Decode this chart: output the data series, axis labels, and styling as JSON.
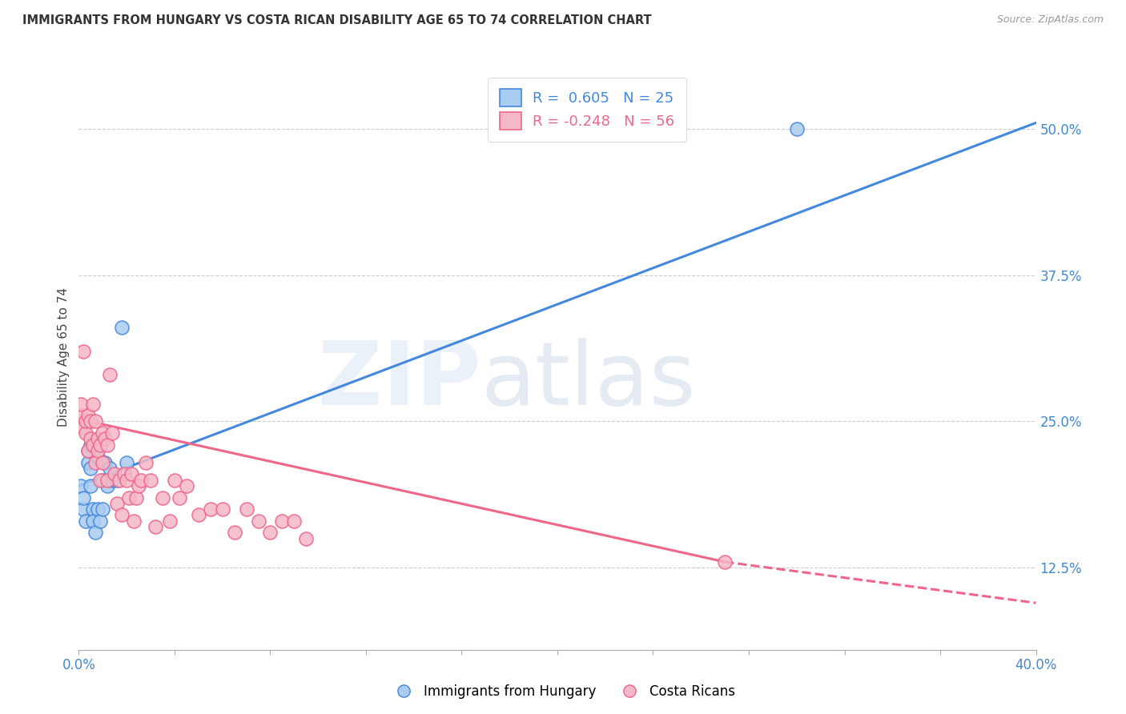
{
  "title": "IMMIGRANTS FROM HUNGARY VS COSTA RICAN DISABILITY AGE 65 TO 74 CORRELATION CHART",
  "source": "Source: ZipAtlas.com",
  "ylabel": "Disability Age 65 to 74",
  "legend_label1": "Immigrants from Hungary",
  "legend_label2": "Costa Ricans",
  "r1": 0.605,
  "n1": 25,
  "r2": -0.248,
  "n2": 56,
  "color_hungary": "#aaccf0",
  "color_cr": "#f5b8c8",
  "color_hungary_line": "#4488dd",
  "color_cr_line": "#ee6688",
  "hungary_x": [
    0.001,
    0.002,
    0.002,
    0.003,
    0.004,
    0.004,
    0.005,
    0.005,
    0.005,
    0.006,
    0.006,
    0.007,
    0.008,
    0.008,
    0.009,
    0.01,
    0.01,
    0.011,
    0.012,
    0.013,
    0.014,
    0.016,
    0.018,
    0.02,
    0.3
  ],
  "hungary_y": [
    0.195,
    0.175,
    0.185,
    0.165,
    0.215,
    0.225,
    0.23,
    0.21,
    0.195,
    0.175,
    0.165,
    0.155,
    0.175,
    0.22,
    0.165,
    0.2,
    0.175,
    0.215,
    0.195,
    0.21,
    0.2,
    0.2,
    0.33,
    0.215,
    0.5
  ],
  "cr_x": [
    0.001,
    0.001,
    0.002,
    0.002,
    0.003,
    0.003,
    0.004,
    0.004,
    0.005,
    0.005,
    0.006,
    0.006,
    0.007,
    0.007,
    0.008,
    0.008,
    0.009,
    0.009,
    0.01,
    0.01,
    0.011,
    0.012,
    0.012,
    0.013,
    0.014,
    0.015,
    0.016,
    0.017,
    0.018,
    0.019,
    0.02,
    0.021,
    0.022,
    0.023,
    0.024,
    0.025,
    0.026,
    0.028,
    0.03,
    0.032,
    0.035,
    0.038,
    0.04,
    0.042,
    0.045,
    0.05,
    0.055,
    0.06,
    0.065,
    0.07,
    0.075,
    0.08,
    0.085,
    0.09,
    0.095,
    0.27
  ],
  "cr_y": [
    0.255,
    0.265,
    0.245,
    0.31,
    0.24,
    0.25,
    0.255,
    0.225,
    0.235,
    0.25,
    0.23,
    0.265,
    0.215,
    0.25,
    0.235,
    0.225,
    0.2,
    0.23,
    0.24,
    0.215,
    0.235,
    0.2,
    0.23,
    0.29,
    0.24,
    0.205,
    0.18,
    0.2,
    0.17,
    0.205,
    0.2,
    0.185,
    0.205,
    0.165,
    0.185,
    0.195,
    0.2,
    0.215,
    0.2,
    0.16,
    0.185,
    0.165,
    0.2,
    0.185,
    0.195,
    0.17,
    0.175,
    0.175,
    0.155,
    0.175,
    0.165,
    0.155,
    0.165,
    0.165,
    0.15,
    0.13
  ],
  "hungary_line_x0": 0.0,
  "hungary_line_y0": 0.195,
  "hungary_line_x1": 0.4,
  "hungary_line_y1": 0.505,
  "cr_line_x0": 0.0,
  "cr_line_y0": 0.252,
  "cr_line_xsolid": 0.27,
  "cr_line_ysolid": 0.13,
  "cr_line_x1": 0.4,
  "cr_line_y1": 0.095,
  "xlim": [
    0.0,
    0.4
  ],
  "ylim": [
    0.055,
    0.555
  ],
  "yticks": [
    0.125,
    0.25,
    0.375,
    0.5
  ],
  "ytick_labels": [
    "12.5%",
    "25.0%",
    "37.5%",
    "50.0%"
  ],
  "xtick_labels_left": "0.0%",
  "xtick_labels_right": "40.0%"
}
